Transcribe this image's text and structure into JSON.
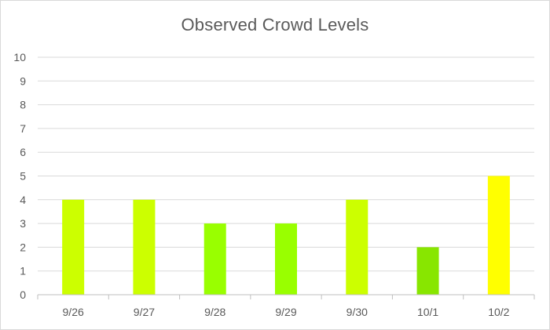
{
  "chart_data": {
    "type": "bar",
    "title": "Observed Crowd Levels",
    "xlabel": "",
    "ylabel": "",
    "categories": [
      "9/26",
      "9/27",
      "9/28",
      "9/29",
      "9/30",
      "10/1",
      "10/2"
    ],
    "values": [
      4,
      4,
      3,
      3,
      4,
      2,
      5
    ],
    "bar_colors": [
      "#ccff00",
      "#ccff00",
      "#99ff00",
      "#99ff00",
      "#ccff00",
      "#88e600",
      "#ffff00"
    ],
    "ylim": [
      0,
      10
    ],
    "yticks": [
      0,
      1,
      2,
      3,
      4,
      5,
      6,
      7,
      8,
      9,
      10
    ],
    "grid": true,
    "legend": "none"
  }
}
